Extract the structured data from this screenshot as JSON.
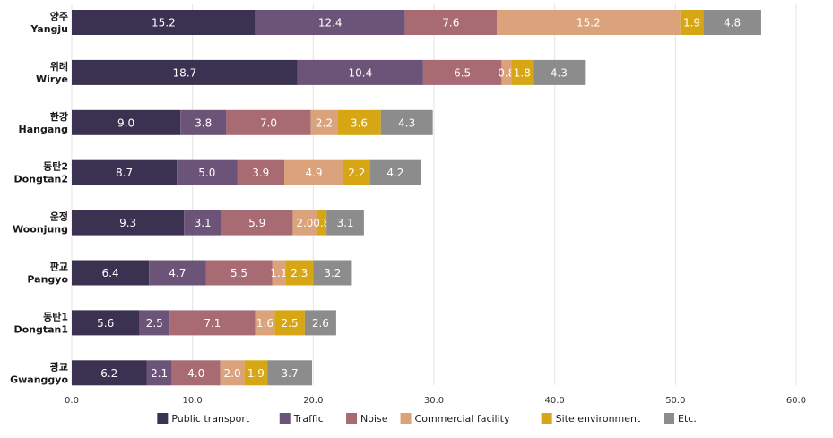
{
  "chart_data": {
    "type": "bar",
    "orientation": "horizontal",
    "stacked": true,
    "categories": [
      {
        "ko": "양주",
        "en": "Yangju"
      },
      {
        "ko": "위례",
        "en": "Wirye"
      },
      {
        "ko": "한강",
        "en": "Hangang"
      },
      {
        "ko": "동탄2",
        "en": "Dongtan2"
      },
      {
        "ko": "운정",
        "en": "Woonjung"
      },
      {
        "ko": "판교",
        "en": "Pangyo"
      },
      {
        "ko": "동탄1",
        "en": "Dongtan1"
      },
      {
        "ko": "광교",
        "en": "Gwanggyo"
      }
    ],
    "series": [
      {
        "name": "Public transport",
        "color": "#3b3150",
        "values": [
          "15.2",
          "18.7",
          "9.0",
          "8.7",
          "9.3",
          "6.4",
          "5.6",
          "6.2"
        ]
      },
      {
        "name": "Traffic",
        "color": "#6c5478",
        "values": [
          "12.4",
          "10.4",
          "3.8",
          "5.0",
          "3.1",
          "4.7",
          "2.5",
          "2.1"
        ]
      },
      {
        "name": "Noise",
        "color": "#a86a73",
        "values": [
          "7.6",
          "6.5",
          "7.0",
          "3.9",
          "5.9",
          "5.5",
          "7.1",
          "4.0"
        ]
      },
      {
        "name": "Commercial facility",
        "color": "#dba37c",
        "values": [
          "15.2",
          "0.8",
          "2.2",
          "4.9",
          "2.0",
          "1.1",
          "1.6",
          "2.0"
        ]
      },
      {
        "name": "Site environment",
        "color": "#d7a614",
        "values": [
          "1.9",
          "1.8",
          "3.6",
          "2.2",
          "0.8",
          "2.3",
          "2.5",
          "1.9"
        ]
      },
      {
        "name": "Etc.",
        "color": "#8c8c8c",
        "values": [
          "4.8",
          "4.3",
          "4.3",
          "4.2",
          "3.1",
          "3.2",
          "2.6",
          "3.7"
        ]
      }
    ],
    "xlim": [
      0,
      60
    ],
    "xticks": [
      "0.0",
      "10.0",
      "20.0",
      "30.0",
      "40.0",
      "50.0",
      "60.0"
    ],
    "grid": true,
    "legend_position": "bottom"
  }
}
